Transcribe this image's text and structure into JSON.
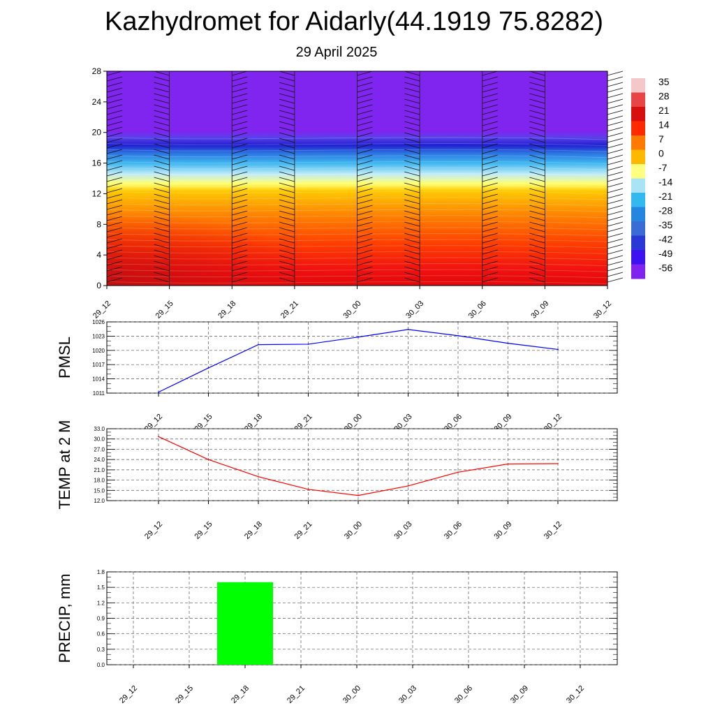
{
  "title": "Kazhydromet for Aidarly(44.1919 75.8282)",
  "subtitle": "29 April 2025",
  "time_labels": [
    "29_12",
    "29_15",
    "29_18",
    "29_21",
    "30_00",
    "30_03",
    "30_06",
    "30_09",
    "30_12"
  ],
  "colorbar": {
    "labels": [
      "35",
      "28",
      "21",
      "14",
      "7",
      "0",
      "-7",
      "-14",
      "-21",
      "-28",
      "-35",
      "-42",
      "-49",
      "-56"
    ],
    "colors": [
      "#f4c8c8",
      "#e84646",
      "#d80f0f",
      "#ff2a00",
      "#ff7a00",
      "#ffb800",
      "#ffff80",
      "#a8e4f6",
      "#34b8f0",
      "#2486e0",
      "#3a6cd6",
      "#2a38d8",
      "#3c12f0",
      "#8024f0"
    ]
  },
  "chart_data": [
    {
      "type": "heatmap",
      "name": "cross-section",
      "ylim": [
        0,
        28
      ],
      "yticks": [
        0,
        4,
        8,
        12,
        16,
        20,
        24,
        28
      ],
      "x": [
        "29_12",
        "29_15",
        "29_18",
        "29_21",
        "30_00",
        "30_03",
        "30_06",
        "30_09",
        "30_12"
      ],
      "value_range": [
        -56,
        35
      ],
      "colorbar_labels": [
        "35",
        "28",
        "21",
        "14",
        "7",
        "0",
        "-7",
        "-14",
        "-21",
        "-28",
        "-35",
        "-42",
        "-49",
        "-56"
      ],
      "overlay": "wind barbs"
    },
    {
      "type": "line",
      "ylabel": "PMSL",
      "ylim": [
        1011,
        1026
      ],
      "yticks": [
        "1011",
        "1014",
        "1017",
        "1020",
        "1023",
        "1026"
      ],
      "x": [
        "29_12",
        "29_15",
        "29_18",
        "29_21",
        "30_00",
        "30_03",
        "30_06",
        "30_09",
        "30_12"
      ],
      "series": [
        {
          "color": "#0000ff",
          "values": [
            1011.2,
            1016.3,
            1021.2,
            1021.3,
            1022.8,
            1024.4,
            1023.1,
            1021.5,
            1020.2
          ]
        }
      ],
      "grid": true
    },
    {
      "type": "line",
      "ylabel": "TEMP at 2 M",
      "ylim": [
        12,
        33
      ],
      "yticks": [
        "12.0",
        "15.0",
        "18.0",
        "21.0",
        "24.0",
        "27.0",
        "30.0",
        "33.0"
      ],
      "x": [
        "29_12",
        "29_15",
        "29_18",
        "29_21",
        "30_00",
        "30_03",
        "30_06",
        "30_09",
        "30_12"
      ],
      "series": [
        {
          "color": "#ff0000",
          "values": [
            30.7,
            24.0,
            19.0,
            15.3,
            13.5,
            16.3,
            20.3,
            22.7,
            22.8
          ]
        }
      ],
      "grid": true
    },
    {
      "type": "bar",
      "ylabel": "PRECIP, mm",
      "ylim": [
        0,
        1.8
      ],
      "yticks": [
        "0.0",
        "0.3",
        "0.6",
        "0.9",
        "1.2",
        "1.5",
        "1.8"
      ],
      "categories": [
        "29_12",
        "29_15",
        "29_18",
        "29_21",
        "30_00",
        "30_03",
        "30_06",
        "30_09",
        "30_12"
      ],
      "values": [
        0,
        0,
        1.6,
        0,
        0,
        0,
        0,
        0,
        0
      ],
      "color": "#00ff00",
      "grid": true
    }
  ]
}
